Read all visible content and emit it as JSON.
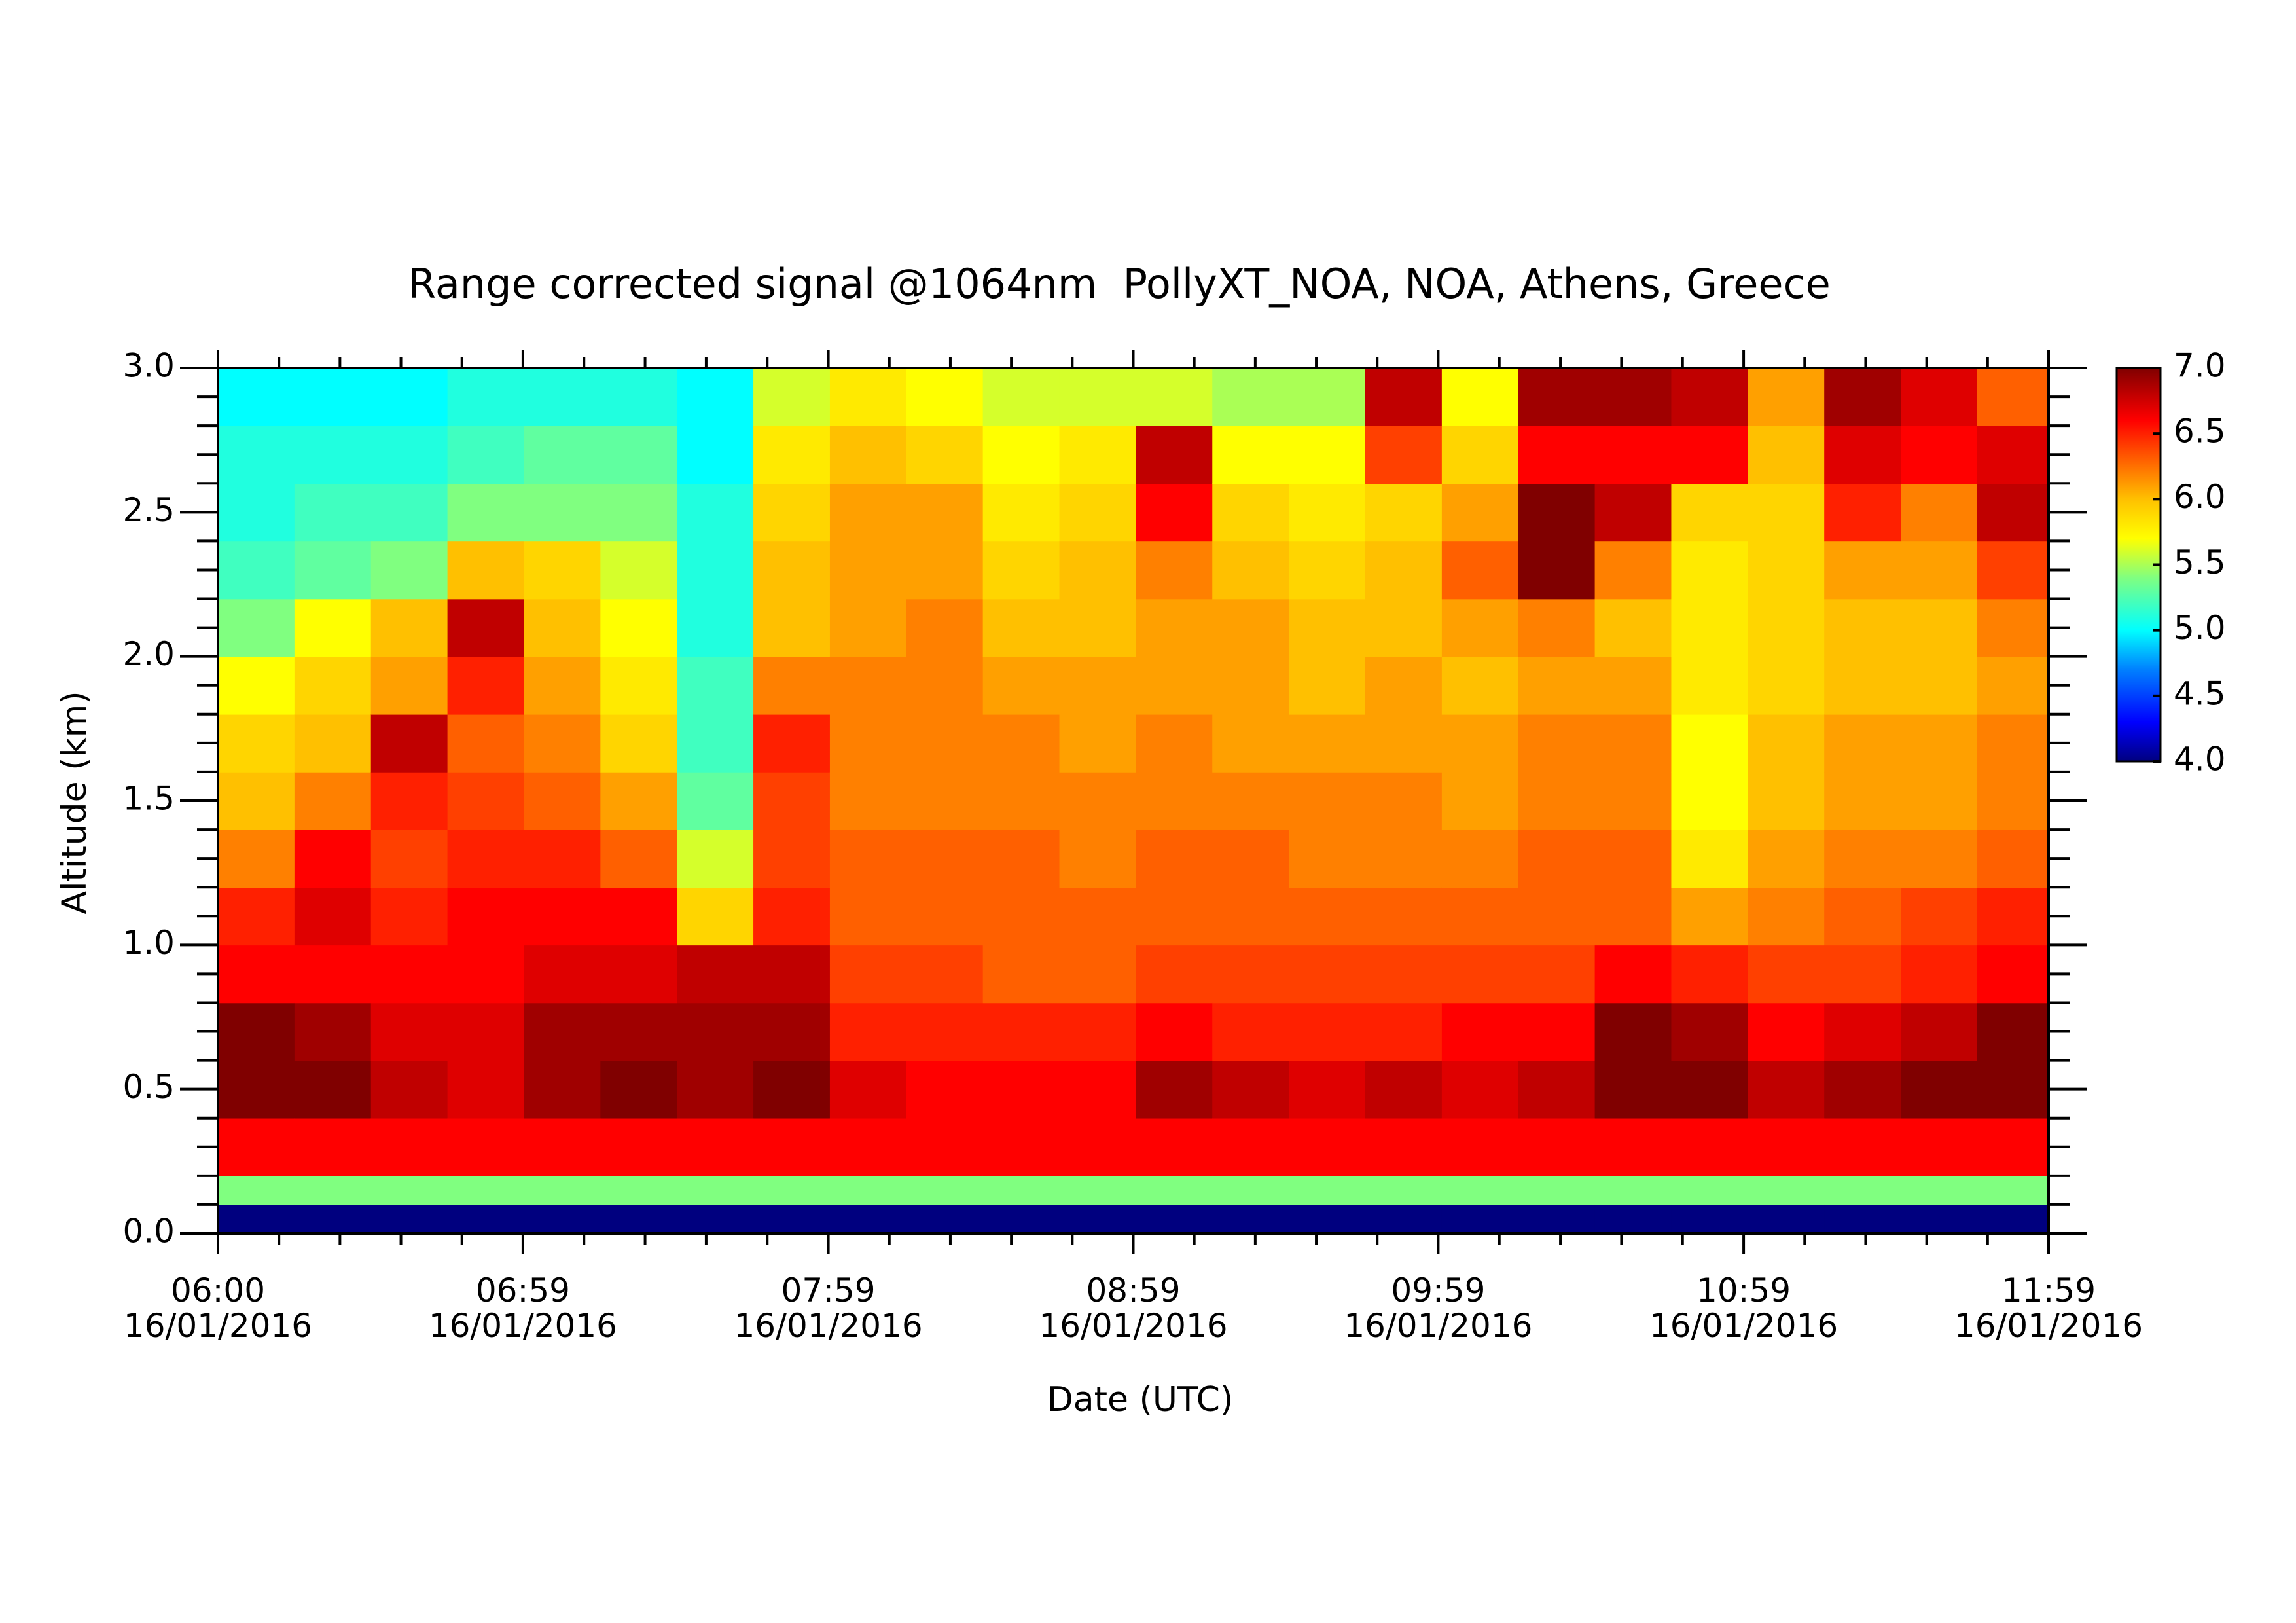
{
  "chart_data": {
    "type": "heatmap",
    "title": "Range corrected signal @1064nm  PollyXT_NOA, NOA, Athens, Greece",
    "x_label": "Date (UTC)",
    "y_label": "Altitude (km)",
    "xlim": [
      360,
      719
    ],
    "xticks": [
      {
        "value": 360,
        "label": "06:00\n16/01/2016"
      },
      {
        "value": 419.8,
        "label": "06:59\n16/01/2016"
      },
      {
        "value": 479.7,
        "label": "07:59\n16/01/2016"
      },
      {
        "value": 539.5,
        "label": "08:59\n16/01/2016"
      },
      {
        "value": 599.3,
        "label": "09:59\n16/01/2016"
      },
      {
        "value": 659.2,
        "label": "10:59\n16/01/2016"
      },
      {
        "value": 719,
        "label": "11:59\n16/01/2016"
      }
    ],
    "ylim": [
      0,
      3
    ],
    "yticks": [
      {
        "value": 0,
        "label": "0.0"
      },
      {
        "value": 0.5,
        "label": "0.5"
      },
      {
        "value": 1,
        "label": "1.0"
      },
      {
        "value": 1.5,
        "label": "1.5"
      },
      {
        "value": 2,
        "label": "2.0"
      },
      {
        "value": 2.5,
        "label": "2.5"
      },
      {
        "value": 3,
        "label": "3.0"
      }
    ],
    "zlim": [
      4,
      7
    ],
    "zticks": [
      {
        "value": 4,
        "label": "4.0"
      },
      {
        "value": 4.5,
        "label": "4.5"
      },
      {
        "value": 5,
        "label": "5.0"
      },
      {
        "value": 5.5,
        "label": "5.5"
      },
      {
        "value": 6,
        "label": "6.0"
      },
      {
        "value": 6.5,
        "label": "6.5"
      },
      {
        "value": 7,
        "label": "7.0"
      }
    ],
    "colorscale": [
      [
        4,
        "#00007f"
      ],
      [
        4.3,
        "#0000ff"
      ],
      [
        4.7,
        "#0080ff"
      ],
      [
        5,
        "#00ffff"
      ],
      [
        5.4,
        "#80ff80"
      ],
      [
        5.7,
        "#ffff00"
      ],
      [
        6,
        "#ffc000"
      ],
      [
        6.3,
        "#ff6000"
      ],
      [
        6.6,
        "#ff0000"
      ],
      [
        6.8,
        "#c00000"
      ],
      [
        7,
        "#800000"
      ]
    ],
    "x": [
      360,
      375,
      390,
      405,
      420,
      435,
      450,
      465,
      480,
      495,
      510,
      525,
      540,
      555,
      570,
      585,
      600,
      615,
      630,
      645,
      660,
      675,
      690,
      705
    ],
    "y": [
      0,
      0.1,
      0.2,
      0.4,
      0.6,
      0.8,
      1.0,
      1.2,
      1.4,
      1.6,
      1.8,
      2.0,
      2.2,
      2.4,
      2.6,
      2.8
    ],
    "values": [
      [
        4.0,
        5.4,
        6.6,
        7.0,
        7.0,
        6.6,
        6.5,
        6.2,
        6.0,
        5.9,
        5.7,
        5.4,
        5.2,
        5.1,
        5.1,
        5.0
      ],
      [
        4.0,
        5.4,
        6.6,
        7.0,
        6.9,
        6.6,
        6.7,
        6.6,
        6.2,
        6.0,
        5.9,
        5.7,
        5.3,
        5.2,
        5.1,
        5.0
      ],
      [
        4.0,
        5.4,
        6.6,
        6.8,
        6.7,
        6.6,
        6.5,
        6.4,
        6.5,
        6.8,
        6.1,
        6.0,
        5.4,
        5.2,
        5.1,
        5.0
      ],
      [
        4.0,
        5.4,
        6.6,
        6.7,
        6.7,
        6.6,
        6.6,
        6.5,
        6.4,
        6.3,
        6.5,
        6.8,
        6.0,
        5.4,
        5.2,
        5.1
      ],
      [
        4.0,
        5.4,
        6.6,
        6.9,
        6.9,
        6.7,
        6.6,
        6.5,
        6.3,
        6.2,
        6.1,
        6.0,
        5.9,
        5.4,
        5.3,
        5.1
      ],
      [
        4.0,
        5.4,
        6.6,
        7.0,
        6.9,
        6.7,
        6.6,
        6.3,
        6.1,
        5.9,
        5.8,
        5.7,
        5.6,
        5.4,
        5.3,
        5.1
      ],
      [
        4.0,
        5.4,
        6.6,
        6.9,
        6.9,
        6.8,
        5.9,
        5.6,
        5.3,
        5.2,
        5.2,
        5.1,
        5.1,
        5.1,
        5.0,
        5.0
      ],
      [
        4.0,
        5.4,
        6.6,
        7.0,
        6.9,
        6.8,
        6.5,
        6.4,
        6.4,
        6.5,
        6.2,
        6.0,
        6.0,
        5.9,
        5.8,
        5.6
      ],
      [
        4.0,
        5.4,
        6.6,
        6.7,
        6.5,
        6.4,
        6.3,
        6.3,
        6.2,
        6.2,
        6.2,
        6.1,
        6.1,
        6.1,
        6.0,
        5.8
      ],
      [
        4.0,
        5.4,
        6.6,
        6.6,
        6.5,
        6.4,
        6.3,
        6.3,
        6.2,
        6.2,
        6.2,
        6.2,
        6.1,
        6.1,
        5.9,
        5.7
      ],
      [
        4.0,
        5.4,
        6.6,
        6.6,
        6.5,
        6.3,
        6.3,
        6.3,
        6.2,
        6.2,
        6.1,
        6.0,
        5.9,
        5.8,
        5.7,
        5.6
      ],
      [
        4.0,
        5.4,
        6.6,
        6.6,
        6.5,
        6.3,
        6.3,
        6.2,
        6.2,
        6.1,
        6.1,
        6.0,
        6.0,
        5.9,
        5.8,
        5.6
      ],
      [
        4.0,
        5.4,
        6.6,
        6.9,
        6.6,
        6.4,
        6.3,
        6.3,
        6.2,
        6.2,
        6.1,
        6.1,
        6.2,
        6.6,
        6.8,
        5.6
      ],
      [
        4.0,
        5.4,
        6.6,
        6.8,
        6.5,
        6.4,
        6.3,
        6.3,
        6.2,
        6.1,
        6.1,
        6.1,
        6.0,
        5.9,
        5.7,
        5.5
      ],
      [
        4.0,
        5.4,
        6.6,
        6.7,
        6.5,
        6.4,
        6.3,
        6.2,
        6.2,
        6.1,
        6.0,
        6.0,
        5.9,
        5.8,
        5.7,
        5.5
      ],
      [
        4.0,
        5.4,
        6.6,
        6.8,
        6.5,
        6.4,
        6.3,
        6.2,
        6.2,
        6.1,
        6.1,
        6.0,
        6.0,
        5.9,
        6.4,
        6.8
      ],
      [
        4.0,
        5.4,
        6.6,
        6.7,
        6.6,
        6.4,
        6.3,
        6.2,
        6.1,
        6.1,
        6.0,
        6.1,
        6.3,
        6.1,
        5.9,
        5.7
      ],
      [
        4.0,
        5.4,
        6.6,
        6.8,
        6.6,
        6.4,
        6.3,
        6.3,
        6.2,
        6.2,
        6.1,
        6.2,
        7.0,
        7.0,
        6.6,
        6.9
      ],
      [
        4.0,
        5.4,
        6.6,
        7.0,
        7.0,
        6.6,
        6.3,
        6.3,
        6.2,
        6.2,
        6.1,
        6.0,
        6.2,
        6.8,
        6.6,
        6.9
      ],
      [
        4.0,
        5.4,
        6.6,
        7.0,
        6.9,
        6.5,
        6.1,
        5.8,
        5.7,
        5.7,
        5.8,
        5.8,
        5.8,
        5.9,
        6.6,
        6.8
      ],
      [
        4.0,
        5.4,
        6.6,
        6.8,
        6.6,
        6.4,
        6.2,
        6.1,
        6.0,
        6.0,
        5.9,
        5.9,
        5.9,
        5.9,
        6.0,
        6.1
      ],
      [
        4.0,
        5.4,
        6.6,
        6.9,
        6.7,
        6.4,
        6.3,
        6.2,
        6.1,
        6.1,
        6.0,
        6.0,
        6.1,
        6.5,
        6.7,
        6.9
      ],
      [
        4.0,
        5.4,
        6.6,
        7.0,
        6.8,
        6.5,
        6.4,
        6.2,
        6.1,
        6.1,
        6.0,
        6.0,
        6.1,
        6.2,
        6.6,
        6.7
      ],
      [
        4.0,
        5.4,
        6.6,
        7.0,
        7.0,
        6.6,
        6.5,
        6.3,
        6.2,
        6.2,
        6.1,
        6.2,
        6.4,
        6.8,
        6.7,
        6.3
      ]
    ]
  }
}
